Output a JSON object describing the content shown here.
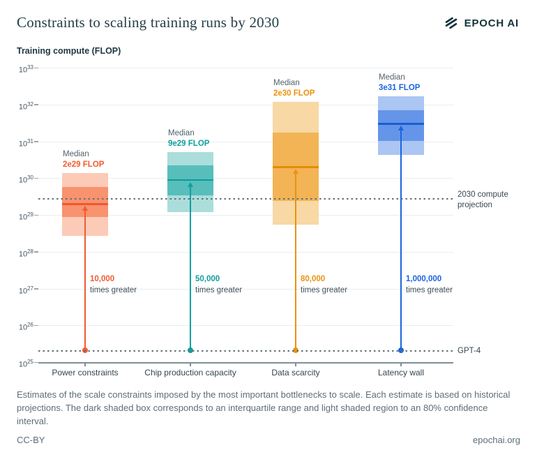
{
  "header": {
    "title": "Constraints to scaling training runs by 2030",
    "brand": {
      "name": "EPOCH AI",
      "icon": "epoch-logo-icon",
      "color": "#13333D"
    }
  },
  "chart_data": {
    "type": "box",
    "title": "Constraints to scaling training runs by 2030",
    "ylabel": "Training compute (FLOP)",
    "y_axis": {
      "scale": "log10",
      "unit": "FLOP",
      "base": "10",
      "tick_exponents": [
        33,
        32,
        31,
        30,
        29,
        28,
        27,
        26,
        25
      ],
      "ylim_exponents": [
        25,
        33
      ],
      "grid": true
    },
    "median_word": "Median",
    "multiplier_suffix": "times greater",
    "reference_lines": [
      {
        "id": "projection-2030",
        "label_lines": [
          "2030 compute",
          "projection"
        ],
        "value": 2.7e+29
      },
      {
        "id": "gpt4",
        "label_lines": [
          "GPT-4"
        ],
        "value": 2e+25
      }
    ],
    "categories": [
      {
        "label": "Power constraints",
        "slug": "power-constraints",
        "median": 2e+29,
        "median_label": "2e29 FLOP",
        "iqr": [
          8.8e+28,
          5.7e+29
        ],
        "ci80": [
          2.7e+28,
          1.4e+30
        ],
        "multiplier": "10,000",
        "colors": {
          "accent": "#F15B31",
          "light": "#FBCBB8",
          "dark": "#F8926F",
          "median_line": "#EE5930"
        }
      },
      {
        "label": "Chip production capacity",
        "slug": "chip-production-capacity",
        "median": 9e+29,
        "median_label": "9e29 FLOP",
        "iqr": [
          3.4e+29,
          2.2e+30
        ],
        "ci80": [
          1.2e+29,
          5.1e+30
        ],
        "multiplier": "50,000",
        "colors": {
          "accent": "#0FA09D",
          "light": "#ABDDDB",
          "dark": "#57BEBC",
          "median_line": "#0C9B98"
        }
      },
      {
        "label": "Data scarcity",
        "slug": "data-scarcity",
        "median": 2e+30,
        "median_label": "2e30 FLOP",
        "iqr": [
          2.4e+29,
          1.7e+31
        ],
        "ci80": [
          5.4e+28,
          1.2e+32
        ],
        "multiplier": "80,000",
        "colors": {
          "accent": "#EB9210",
          "light": "#F8D8A4",
          "dark": "#F2B455",
          "median_line": "#E18E08"
        }
      },
      {
        "label": "Latency wall",
        "slug": "latency-wall",
        "median": 3e+31,
        "median_label": "3e31 FLOP",
        "iqr": [
          1e+31,
          7e+31
        ],
        "ci80": [
          4.3e+30,
          1.7e+32
        ],
        "multiplier": "1,000,000",
        "colors": {
          "accent": "#1B64E0",
          "light": "#ABC6F3",
          "dark": "#6495E9",
          "median_line": "#1C5ECF"
        }
      }
    ]
  },
  "caption": "Estimates of the scale constraints imposed by the most important bottlenecks to scale. Each estimate is based on historical projections. The dark shaded box corresponds to an interquartile range and light shaded region to an 80% confidence interval.",
  "footer": {
    "license": "CC-BY",
    "site": "epochai.org"
  }
}
